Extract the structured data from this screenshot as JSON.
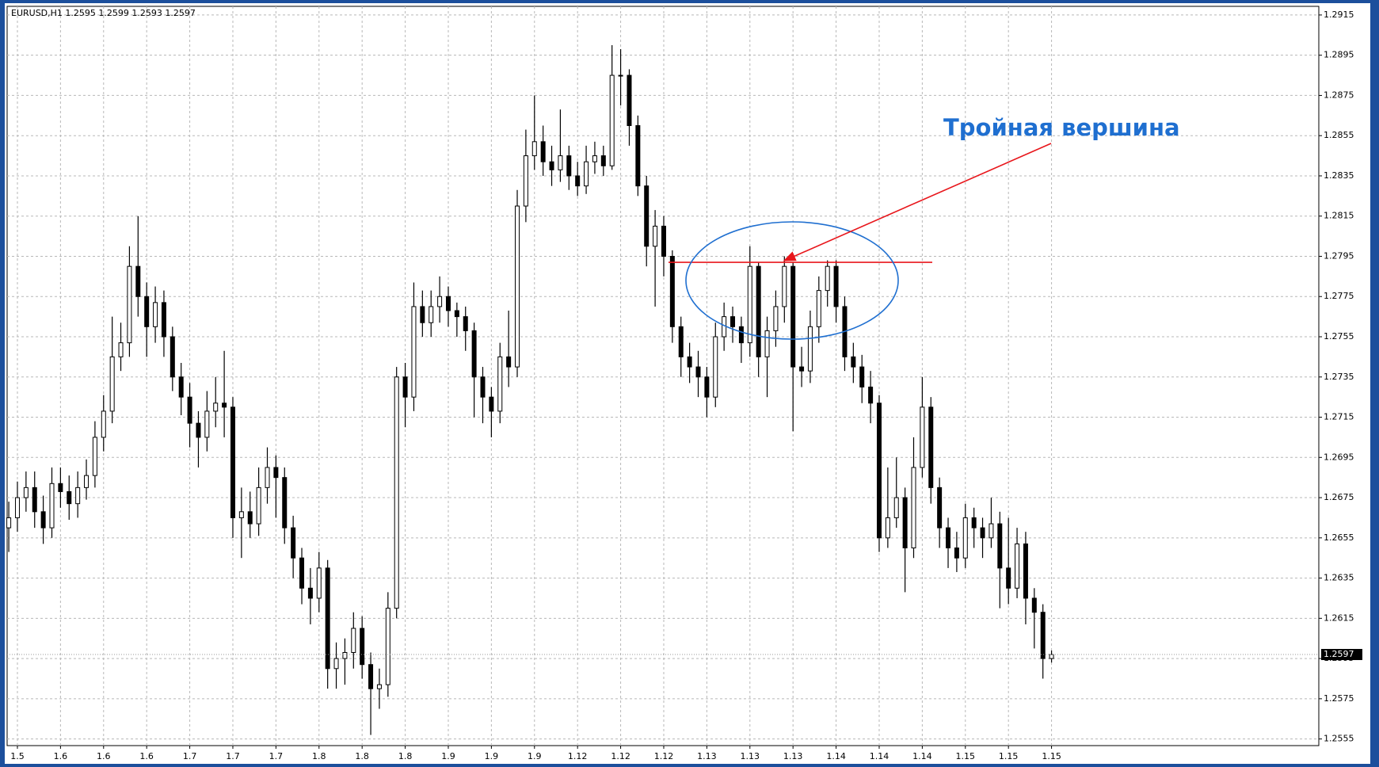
{
  "chart_data": {
    "type": "candlestick",
    "title": "EURUSD,H1  1.2595 1.2599 1.2593 1.2597",
    "annotation": "Тройная вершина",
    "categories": [
      null,
      "1.5",
      null,
      null,
      null,
      null,
      "1.6",
      null,
      null,
      null,
      null,
      "1.6",
      null,
      null,
      null,
      null,
      "1.6",
      null,
      null,
      null,
      null,
      "1.7",
      null,
      null,
      null,
      null,
      "1.7",
      null,
      null,
      null,
      null,
      "1.7",
      null,
      null,
      null,
      null,
      "1.8",
      null,
      null,
      null,
      null,
      "1.8",
      null,
      null,
      null,
      null,
      "1.8",
      null,
      null,
      null,
      null,
      "1.9",
      null,
      null,
      null,
      null,
      "1.9",
      null,
      null,
      null,
      null,
      "1.9",
      null,
      null,
      null,
      null,
      "1.12",
      null,
      null,
      null,
      null,
      "1.12",
      null,
      null,
      null,
      null,
      "1.12",
      null,
      null,
      null,
      null,
      "1.13",
      null,
      null,
      null,
      null,
      "1.13",
      null,
      null,
      null,
      null,
      "1.13",
      null,
      null,
      null,
      null,
      "1.14",
      null,
      null,
      null,
      null,
      "1.14",
      null,
      null,
      null,
      null,
      "1.14",
      null,
      null,
      null,
      null,
      "1.15",
      null,
      null,
      null,
      null,
      "1.15",
      null,
      null,
      null,
      null,
      "1.15"
    ],
    "open": [
      1.266,
      1.2665,
      1.2675,
      1.268,
      1.2668,
      1.266,
      1.2682,
      1.2678,
      1.2672,
      1.268,
      1.2686,
      1.2705,
      1.2718,
      1.2745,
      1.2752,
      1.279,
      1.2775,
      1.276,
      1.2772,
      1.2755,
      1.2735,
      1.2725,
      1.2712,
      1.2705,
      1.2718,
      1.2722,
      1.272,
      1.2665,
      1.2668,
      1.2662,
      1.268,
      1.269,
      1.2685,
      1.266,
      1.2645,
      1.263,
      1.2625,
      1.264,
      1.259,
      1.2595,
      1.2598,
      1.261,
      1.2592,
      1.258,
      1.2582,
      1.262,
      1.2735,
      1.2725,
      1.277,
      1.2762,
      1.277,
      1.2775,
      1.2768,
      1.2765,
      1.2758,
      1.2735,
      1.2725,
      1.2718,
      1.2745,
      1.274,
      1.282,
      1.2845,
      1.2852,
      1.2842,
      1.2838,
      1.2845,
      1.2835,
      1.283,
      1.2842,
      1.2845,
      1.284,
      1.2885,
      1.2885,
      1.286,
      1.283,
      1.28,
      1.281,
      1.2795,
      1.276,
      1.2745,
      1.274,
      1.2735,
      1.2725,
      1.2755,
      1.2765,
      1.276,
      1.2752,
      1.279,
      1.2745,
      1.2758,
      1.277,
      1.279,
      1.274,
      1.2738,
      1.276,
      1.2778,
      1.279,
      1.277,
      1.2745,
      1.274,
      1.273,
      1.2722,
      1.2655,
      1.2665,
      1.2675,
      1.265,
      1.269,
      1.272,
      1.268,
      1.266,
      1.265,
      1.2645,
      1.2665,
      1.266,
      1.2655,
      1.2662,
      1.264,
      1.263,
      1.2652,
      1.2625,
      1.2618,
      1.2595
    ],
    "high": [
      1.2673,
      1.2683,
      1.2688,
      1.2688,
      1.2676,
      1.269,
      1.269,
      1.2686,
      1.2688,
      1.2694,
      1.2713,
      1.2726,
      1.2765,
      1.2762,
      1.28,
      1.2815,
      1.2782,
      1.278,
      1.2778,
      1.276,
      1.2742,
      1.2732,
      1.2718,
      1.2728,
      1.2735,
      1.2748,
      1.2725,
      1.268,
      1.2678,
      1.269,
      1.27,
      1.2696,
      1.269,
      1.2666,
      1.265,
      1.264,
      1.2648,
      1.2644,
      1.2603,
      1.2605,
      1.2618,
      1.2616,
      1.2598,
      1.259,
      1.2628,
      1.274,
      1.2742,
      1.2782,
      1.2778,
      1.2778,
      1.2785,
      1.278,
      1.2772,
      1.277,
      1.2762,
      1.274,
      1.273,
      1.2752,
      1.2768,
      1.2828,
      1.2858,
      1.2875,
      1.286,
      1.285,
      1.2868,
      1.285,
      1.2842,
      1.285,
      1.2852,
      1.285,
      1.29,
      1.2898,
      1.2888,
      1.2865,
      1.2835,
      1.2818,
      1.2815,
      1.2798,
      1.2765,
      1.2752,
      1.2748,
      1.274,
      1.2762,
      1.2772,
      1.277,
      1.2765,
      1.28,
      1.2792,
      1.2765,
      1.2778,
      1.2795,
      1.2792,
      1.275,
      1.2768,
      1.2785,
      1.2793,
      1.2793,
      1.2775,
      1.2752,
      1.2746,
      1.2738,
      1.2726,
      1.269,
      1.2695,
      1.268,
      1.2705,
      1.2735,
      1.2725,
      1.2685,
      1.2665,
      1.2658,
      1.2672,
      1.267,
      1.2665,
      1.2675,
      1.2668,
      1.2665,
      1.266,
      1.2658,
      1.263,
      1.2622,
      1.2599
    ],
    "low": [
      1.2648,
      1.2658,
      1.2668,
      1.266,
      1.2652,
      1.2655,
      1.267,
      1.2664,
      1.2665,
      1.2674,
      1.268,
      1.2698,
      1.2712,
      1.2738,
      1.2745,
      1.2765,
      1.2745,
      1.2752,
      1.2745,
      1.2728,
      1.2716,
      1.27,
      1.269,
      1.2698,
      1.271,
      1.2705,
      1.2655,
      1.2645,
      1.2655,
      1.2656,
      1.2672,
      1.2665,
      1.2652,
      1.2635,
      1.2622,
      1.2612,
      1.2618,
      1.258,
      1.258,
      1.2582,
      1.259,
      1.2585,
      1.2557,
      1.257,
      1.2576,
      1.2615,
      1.271,
      1.2718,
      1.2755,
      1.2755,
      1.2762,
      1.276,
      1.2755,
      1.2748,
      1.2715,
      1.2712,
      1.2705,
      1.2712,
      1.273,
      1.2735,
      1.2812,
      1.2838,
      1.2835,
      1.283,
      1.2832,
      1.2828,
      1.2825,
      1.2826,
      1.2836,
      1.2835,
      1.2838,
      1.287,
      1.285,
      1.2825,
      1.279,
      1.277,
      1.2785,
      1.2752,
      1.2735,
      1.2732,
      1.2725,
      1.2715,
      1.272,
      1.2748,
      1.2752,
      1.2742,
      1.2745,
      1.2735,
      1.2725,
      1.275,
      1.2762,
      1.2708,
      1.273,
      1.2732,
      1.2752,
      1.277,
      1.2762,
      1.2738,
      1.2732,
      1.2722,
      1.2712,
      1.2648,
      1.265,
      1.266,
      1.2628,
      1.2645,
      1.2685,
      1.2672,
      1.265,
      1.264,
      1.2638,
      1.264,
      1.265,
      1.2645,
      1.265,
      1.262,
      1.2622,
      1.2625,
      1.2612,
      1.26,
      1.2585,
      1.2593
    ],
    "close": [
      1.2665,
      1.2675,
      1.268,
      1.2668,
      1.266,
      1.2682,
      1.2678,
      1.2672,
      1.268,
      1.2686,
      1.2705,
      1.2718,
      1.2745,
      1.2752,
      1.279,
      1.2775,
      1.276,
      1.2772,
      1.2755,
      1.2735,
      1.2725,
      1.2712,
      1.2705,
      1.2718,
      1.2722,
      1.272,
      1.2665,
      1.2668,
      1.2662,
      1.268,
      1.269,
      1.2685,
      1.266,
      1.2645,
      1.263,
      1.2625,
      1.264,
      1.259,
      1.2595,
      1.2598,
      1.261,
      1.2592,
      1.258,
      1.2582,
      1.262,
      1.2735,
      1.2725,
      1.277,
      1.2762,
      1.277,
      1.2775,
      1.2768,
      1.2765,
      1.2758,
      1.2735,
      1.2725,
      1.2718,
      1.2745,
      1.274,
      1.282,
      1.2845,
      1.2852,
      1.2842,
      1.2838,
      1.2845,
      1.2835,
      1.283,
      1.2842,
      1.2845,
      1.284,
      1.2885,
      1.2885,
      1.286,
      1.283,
      1.28,
      1.281,
      1.2795,
      1.276,
      1.2745,
      1.274,
      1.2735,
      1.2725,
      1.2755,
      1.2765,
      1.276,
      1.2752,
      1.279,
      1.2745,
      1.2758,
      1.277,
      1.279,
      1.274,
      1.2738,
      1.276,
      1.2778,
      1.279,
      1.277,
      1.2745,
      1.274,
      1.273,
      1.2722,
      1.2655,
      1.2665,
      1.2675,
      1.265,
      1.269,
      1.272,
      1.268,
      1.266,
      1.265,
      1.2645,
      1.2665,
      1.266,
      1.2655,
      1.2662,
      1.264,
      1.263,
      1.2652,
      1.2625,
      1.2618,
      1.2595,
      1.2597
    ],
    "last_price": 1.2597,
    "resistance": 1.2792,
    "ylim": [
      1.25517,
      1.29193
    ],
    "yticks": [
      1.2915,
      1.2895,
      1.2875,
      1.2855,
      1.2835,
      1.2815,
      1.2795,
      1.2775,
      1.2755,
      1.2735,
      1.2715,
      1.2695,
      1.2675,
      1.2655,
      1.2635,
      1.2615,
      1.2595,
      1.2575,
      1.2555
    ],
    "grid": true,
    "up_color": "#ffffff",
    "down_color": "#000000",
    "annotation_color": "#1f6fd0",
    "resistance_color": "#e8161b"
  }
}
